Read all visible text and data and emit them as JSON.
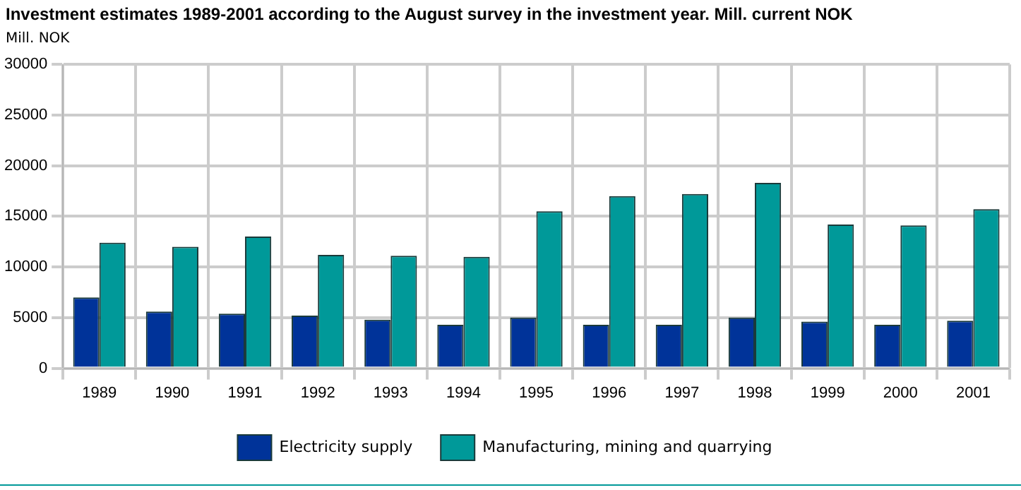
{
  "chart_data": {
    "type": "bar",
    "title": "Investment estimates 1989-2001 according to the August survey in the investment year. Mill. current NOK",
    "ylabel": "Mill. NOK",
    "categories": [
      "1989",
      "1990",
      "1991",
      "1992",
      "1993",
      "1994",
      "1995",
      "1996",
      "1997",
      "1998",
      "1999",
      "2000",
      "2001"
    ],
    "series": [
      {
        "name": "Electricity supply",
        "color": "#003399",
        "values": [
          7000,
          5600,
          5400,
          5200,
          4800,
          4300,
          5000,
          4300,
          4300,
          5000,
          4600,
          4300,
          4700
        ]
      },
      {
        "name": "Manufacturing, mining and quarrying",
        "color": "#009999",
        "values": [
          12400,
          12000,
          13000,
          11200,
          11100,
          11000,
          15500,
          17000,
          17200,
          18300,
          14200,
          14100,
          15700
        ]
      }
    ],
    "ylim": [
      0,
      30000
    ],
    "yticks": [
      0,
      5000,
      10000,
      15000,
      20000,
      25000,
      30000
    ],
    "grid": true,
    "legend": "bottom"
  }
}
